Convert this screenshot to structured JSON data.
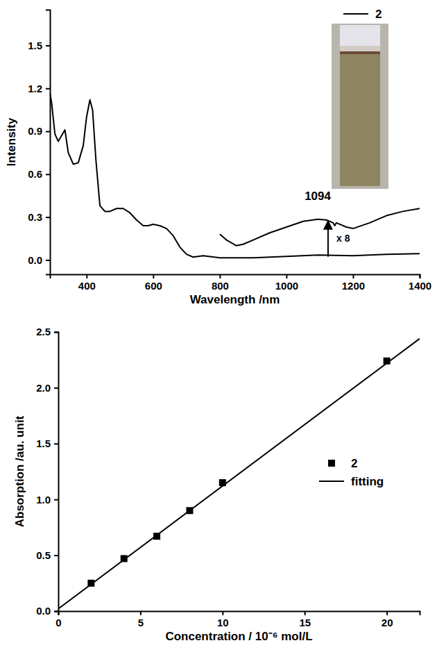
{
  "chart_data": [
    {
      "type": "line",
      "x_label": "Wavelength /nm",
      "y_label": "Intensity",
      "xlim": [
        290,
        1400
      ],
      "ylim": [
        -0.1,
        1.75
      ],
      "xticks": [
        400,
        600,
        800,
        1000,
        1200,
        1400
      ],
      "yticks": [
        {
          "value": 0,
          "label": "0.0"
        },
        {
          "value": 0.3,
          "label": "0.3"
        },
        {
          "value": 0.6,
          "label": "0.6"
        },
        {
          "value": 0.9,
          "label": "0.9"
        },
        {
          "value": 1.2,
          "label": "1.2"
        },
        {
          "value": 1.5,
          "label": "1.5"
        }
      ],
      "legend": "top-right",
      "series": [
        {
          "name": "2",
          "color": "#000000",
          "x": [
            290,
            295,
            305,
            315,
            325,
            335,
            345,
            360,
            375,
            390,
            400,
            410,
            418,
            428,
            440,
            455,
            470,
            490,
            510,
            530,
            550,
            570,
            585,
            600,
            620,
            640,
            660,
            680,
            700,
            720,
            750,
            800,
            900,
            1000,
            1094,
            1200,
            1300,
            1400
          ],
          "values": [
            1.17,
            1.1,
            0.88,
            0.83,
            0.87,
            0.91,
            0.75,
            0.67,
            0.68,
            0.8,
            1.0,
            1.12,
            1.05,
            0.7,
            0.38,
            0.34,
            0.34,
            0.36,
            0.36,
            0.33,
            0.28,
            0.24,
            0.24,
            0.25,
            0.24,
            0.22,
            0.17,
            0.09,
            0.04,
            0.02,
            0.03,
            0.015,
            0.015,
            0.025,
            0.035,
            0.03,
            0.04,
            0.045
          ]
        },
        {
          "color": "#000000",
          "x": [
            800,
            820,
            850,
            870,
            900,
            950,
            1000,
            1050,
            1094,
            1120,
            1140,
            1145,
            1150,
            1180,
            1200,
            1250,
            1300,
            1350,
            1400
          ],
          "values": [
            0.18,
            0.14,
            0.1,
            0.11,
            0.14,
            0.19,
            0.23,
            0.27,
            0.285,
            0.28,
            0.26,
            0.24,
            0.26,
            0.23,
            0.22,
            0.26,
            0.31,
            0.34,
            0.36
          ]
        }
      ],
      "annotations": [
        {
          "text": "1094",
          "x": 1094,
          "y": 0.42
        },
        {
          "text": "x 8",
          "x": 1150,
          "y": 0.13
        }
      ]
    },
    {
      "type": "scatter",
      "x_label": "Concentration / 10⁻⁶ mol/L",
      "y_label": "Absorption /au. unit",
      "xlim": [
        0,
        22
      ],
      "ylim": [
        0,
        2.5
      ],
      "xticks": [
        0,
        5,
        10,
        15,
        20
      ],
      "yticks": [
        {
          "value": 0,
          "label": "0.0"
        },
        {
          "value": 0.5,
          "label": "0.5"
        },
        {
          "value": 1,
          "label": "1.0"
        },
        {
          "value": 1.5,
          "label": "1.5"
        },
        {
          "value": 2,
          "label": "2.0"
        },
        {
          "value": 2.5,
          "label": "2.5"
        }
      ],
      "legend": "right",
      "series": [
        {
          "name": "2",
          "color": "#000000",
          "type": "scatter",
          "marker": "square",
          "x": [
            2,
            4,
            6,
            8,
            10,
            20
          ],
          "values": [
            0.25,
            0.47,
            0.67,
            0.9,
            1.15,
            2.24
          ]
        },
        {
          "name": "fitting",
          "color": "#000000",
          "type": "line",
          "x": [
            0,
            22
          ],
          "values": [
            0.02,
            2.44
          ]
        }
      ]
    }
  ]
}
